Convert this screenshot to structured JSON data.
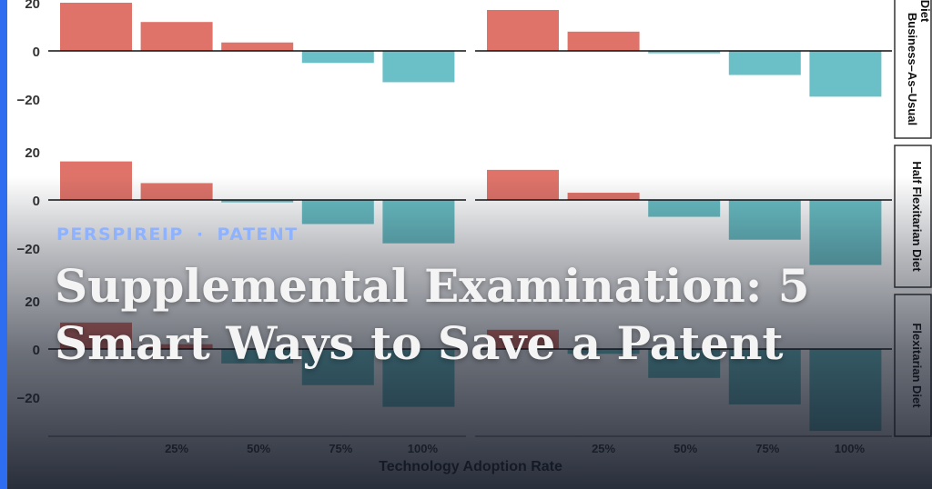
{
  "meta": {
    "site": "PERSPIREIP",
    "category": "PATENT",
    "separator": "·"
  },
  "headline": "Supplemental Examination: 5 Smart Ways to Save a Patent",
  "colors": {
    "accent": "#2f6df0",
    "kicker": "#8fb2ff",
    "positive": "#df7369",
    "negative": "#6ac0c6"
  },
  "chart_data": {
    "type": "bar",
    "xlabel": "Technology Adoption Rate",
    "ylabel": "",
    "categories": [
      "",
      "25%",
      "50%",
      "75%",
      "100%"
    ],
    "ylim": [
      -35,
      25
    ],
    "yticks": [
      20,
      0,
      -20
    ],
    "rows": [
      "Business–As–Usual Diet",
      "Half Flexitarian Diet",
      "Flexitarian Diet"
    ],
    "panels": [
      {
        "row": 0,
        "col": 0,
        "values": [
          20,
          12,
          3.5,
          -5,
          -13
        ]
      },
      {
        "row": 0,
        "col": 1,
        "values": [
          17,
          8,
          -1,
          -10,
          -19
        ]
      },
      {
        "row": 1,
        "col": 0,
        "values": [
          16,
          7,
          -1,
          -10,
          -18
        ]
      },
      {
        "row": 1,
        "col": 1,
        "values": [
          12.5,
          3,
          -7,
          -16.5,
          -27
        ]
      },
      {
        "row": 2,
        "col": 0,
        "values": [
          11,
          2,
          -6,
          -15,
          -24
        ]
      },
      {
        "row": 2,
        "col": 1,
        "values": [
          8,
          -2,
          -12,
          -23,
          -34
        ]
      }
    ]
  }
}
